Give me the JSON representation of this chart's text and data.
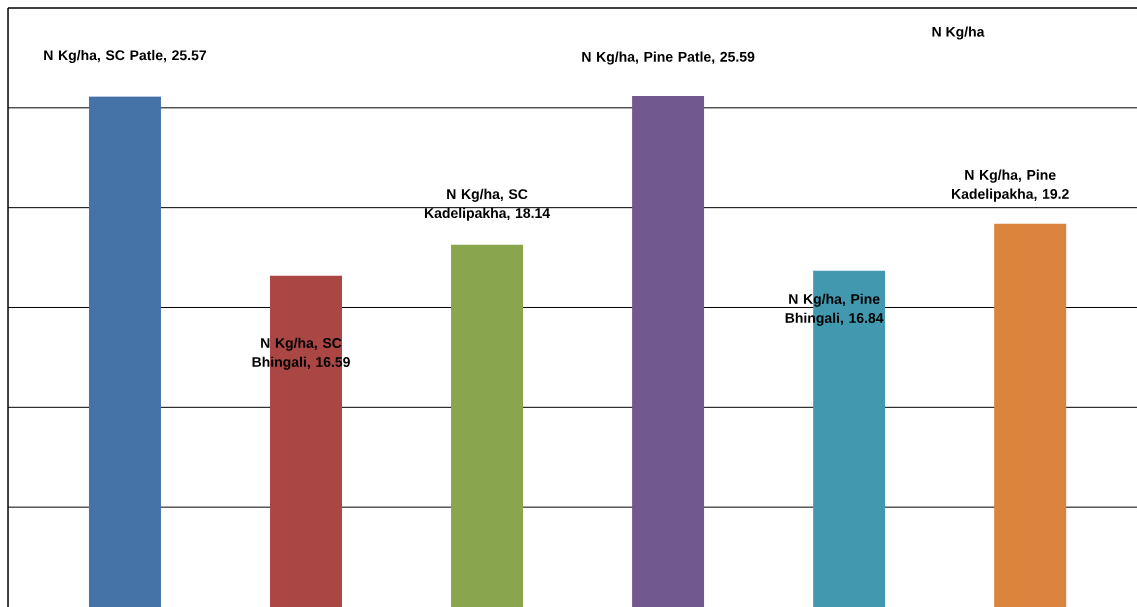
{
  "chart_data": {
    "type": "bar",
    "title": "N  Kg/ha",
    "categories": [
      null,
      null,
      null,
      null,
      null,
      null
    ],
    "series": [
      {
        "values": [
          25.57,
          16.59,
          18.14,
          25.59,
          16.84,
          19.2
        ],
        "colors": [
          "#4572a7",
          "#aa4643",
          "#89a54e",
          "#71588f",
          "#4198af",
          "#db843d"
        ],
        "value_labels": [
          "N  Kg/ha, SC Patle, 25.57",
          "N  Kg/ha, SC Bhingali, 16.59",
          "N  Kg/ha, SC Kadelipakha, 18.14",
          "N  Kg/ha, Pine Patle, 25.59",
          "N  Kg/ha, Pine Bhingali, 16.84",
          "N  Kg/ha, Pine Kadelipakha, 19.2"
        ]
      }
    ],
    "ylim": [
      0,
      30
    ],
    "yticks": [
      {
        "value": 5,
        "label": null
      },
      {
        "value": 10,
        "label": null
      },
      {
        "value": 15,
        "label": null
      },
      {
        "value": 20,
        "label": null
      },
      {
        "value": 25,
        "label": null
      }
    ],
    "grid": "y"
  }
}
